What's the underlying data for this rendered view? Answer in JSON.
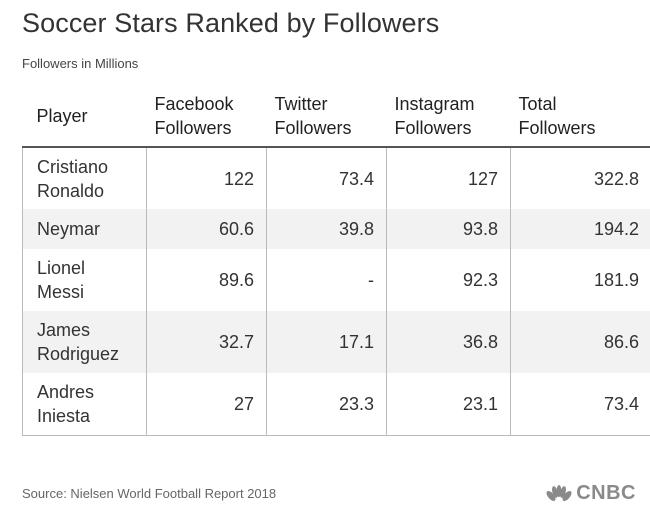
{
  "header": {
    "title": "Soccer Stars Ranked by Followers",
    "subtitle": "Followers in Millions"
  },
  "chart_data": {
    "type": "table",
    "title": "Soccer Stars Ranked by Followers",
    "subtitle": "Followers in Millions",
    "columns": [
      {
        "line1": "Player",
        "line2": ""
      },
      {
        "line1": "Facebook",
        "line2": "Followers"
      },
      {
        "line1": "Twitter",
        "line2": "Followers"
      },
      {
        "line1": "Instagram",
        "line2": "Followers"
      },
      {
        "line1": "Total",
        "line2": "Followers"
      }
    ],
    "rows": [
      {
        "player_first": "Cristiano",
        "player_last": "Ronaldo",
        "facebook": "122",
        "twitter": "73.4",
        "instagram": "127",
        "total": "322.8"
      },
      {
        "player_first": "Neymar",
        "player_last": "",
        "facebook": "60.6",
        "twitter": "39.8",
        "instagram": "93.8",
        "total": "194.2"
      },
      {
        "player_first": "Lionel",
        "player_last": "Messi",
        "facebook": "89.6",
        "twitter": "-",
        "instagram": "92.3",
        "total": "181.9"
      },
      {
        "player_first": "James",
        "player_last": "Rodriguez",
        "facebook": "32.7",
        "twitter": "17.1",
        "instagram": "36.8",
        "total": "86.6"
      },
      {
        "player_first": "Andres",
        "player_last": "Iniesta",
        "facebook": "27",
        "twitter": "23.3",
        "instagram": "23.1",
        "total": "73.4"
      }
    ]
  },
  "footer": {
    "source": "Source: Nielsen World Football Report 2018",
    "logo_text": "CNBC",
    "logo_icon": "nbc-peacock-icon"
  },
  "colors": {
    "title": "#333333",
    "alt_row": "#f2f2f2",
    "grid": "#bbbbbb",
    "logo": "#8a8a8a"
  }
}
